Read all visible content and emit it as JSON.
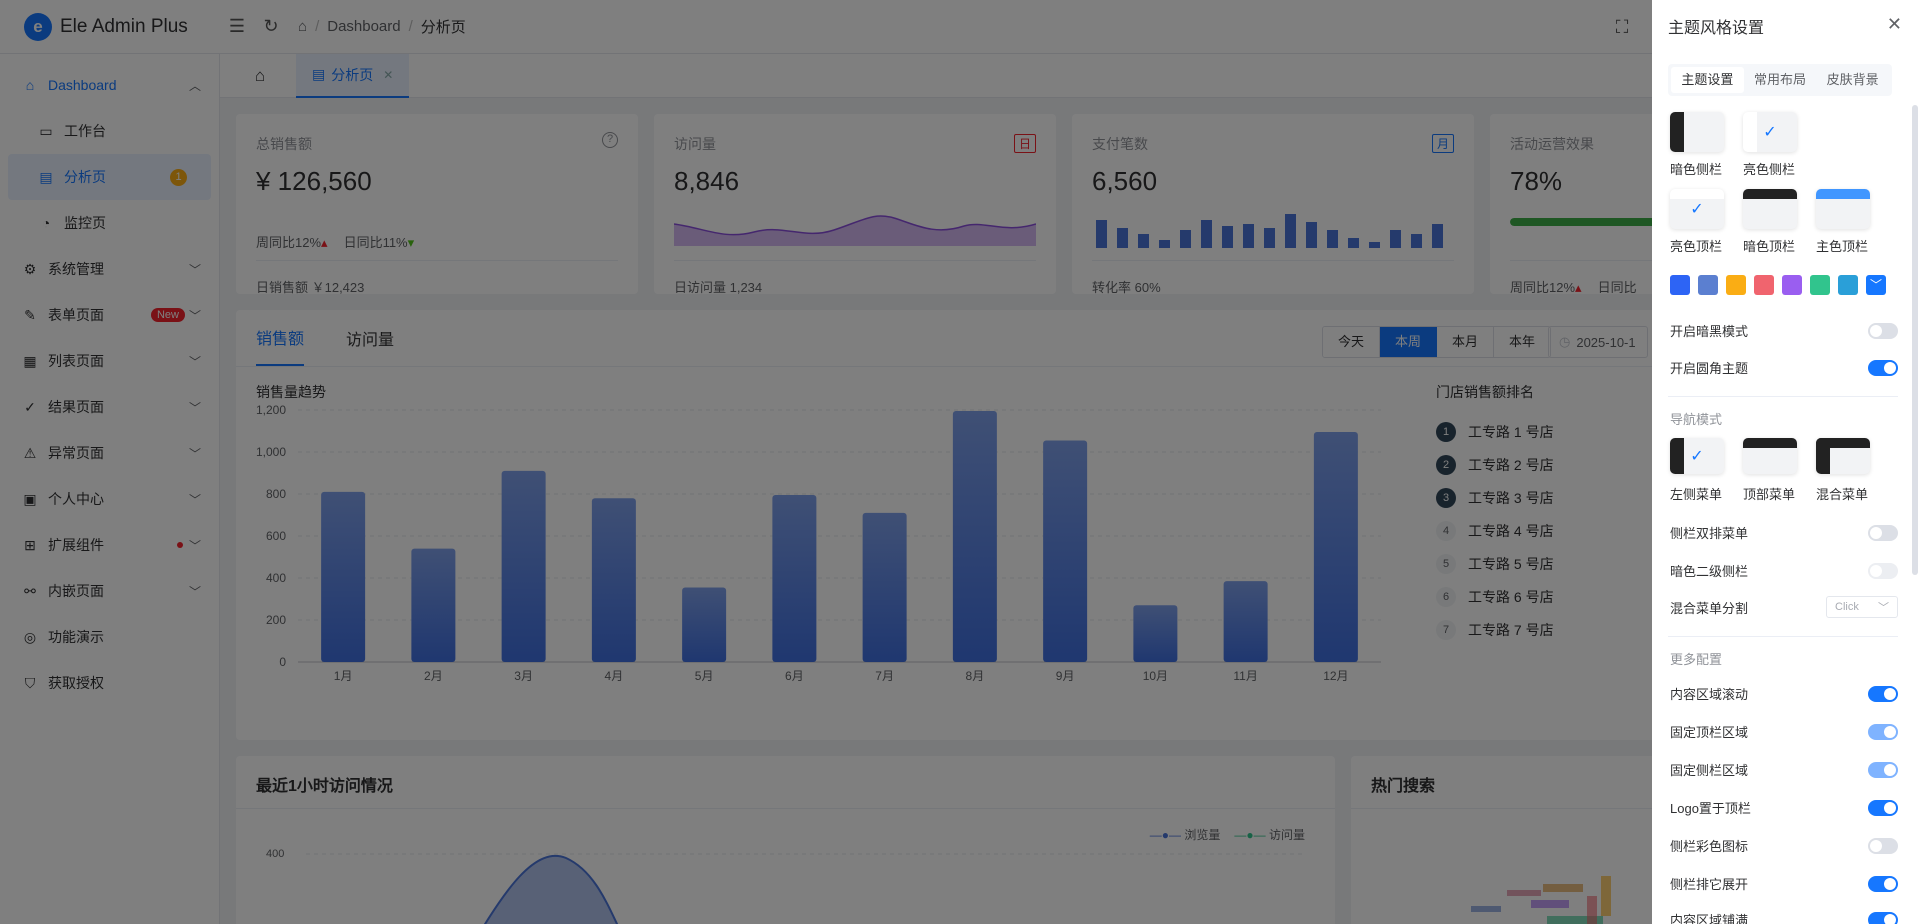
{
  "header": {
    "app_name": "Ele Admin Plus",
    "logo_letter": "e",
    "breadcrumb": [
      "Dashboard",
      "分析页"
    ]
  },
  "sidebar": {
    "items": [
      {
        "label": "Dashboard",
        "icon": "home-icon",
        "state": "active-parent",
        "arrow": "up"
      },
      {
        "label": "工作台",
        "icon": "monitor-icon",
        "sub": true
      },
      {
        "label": "分析页",
        "icon": "chart-icon",
        "sub": true,
        "active": true,
        "badge": "1"
      },
      {
        "label": "监控页",
        "icon": "gauge-icon",
        "sub": true
      },
      {
        "label": "系统管理",
        "icon": "gear-icon",
        "arrow": "down"
      },
      {
        "label": "表单页面",
        "icon": "edit-icon",
        "arrow": "down",
        "tag": "New"
      },
      {
        "label": "列表页面",
        "icon": "table-icon",
        "arrow": "down"
      },
      {
        "label": "结果页面",
        "icon": "check-circle-icon",
        "arrow": "down"
      },
      {
        "label": "异常页面",
        "icon": "warning-icon",
        "arrow": "down"
      },
      {
        "label": "个人中心",
        "icon": "profile-icon",
        "arrow": "down"
      },
      {
        "label": "扩展组件",
        "icon": "grid-icon",
        "arrow": "down",
        "dot": true
      },
      {
        "label": "内嵌页面",
        "icon": "link-icon",
        "arrow": "down"
      },
      {
        "label": "功能演示",
        "icon": "compass-icon"
      },
      {
        "label": "获取授权",
        "icon": "shield-icon"
      }
    ]
  },
  "tabbar": {
    "tab_label": "分析页"
  },
  "stats": [
    {
      "title": "总销售额",
      "value": "¥ 126,560",
      "sub1": "周同比12%",
      "sub2": "日同比11%",
      "foot": "日销售额 ￥12,423"
    },
    {
      "title": "访问量",
      "value": "8,846",
      "tag": "日",
      "tag_color": "#f5222d",
      "foot": "日访问量 1,234"
    },
    {
      "title": "支付笔数",
      "value": "6,560",
      "tag": "月",
      "tag_color": "#1677ff",
      "foot": "转化率 60%"
    },
    {
      "title": "活动运营效果",
      "value": "78%",
      "progress": 0.78,
      "sub1": "周同比12%",
      "sub2": "日同比"
    }
  ],
  "sales": {
    "tabs": [
      "销售额",
      "访问量"
    ],
    "periods": [
      "今天",
      "本周",
      "本月",
      "本年"
    ],
    "date_value": "2025-10-1",
    "chart_title": "销售量趋势",
    "rank_title": "门店销售额排名",
    "rank": [
      "工专路 1 号店",
      "工专路 2 号店",
      "工专路 3 号店",
      "工专路 4 号店",
      "工专路 5 号店",
      "工专路 6 号店",
      "工专路 7 号店"
    ]
  },
  "chart_data": {
    "type": "bar",
    "categories": [
      "1月",
      "2月",
      "3月",
      "4月",
      "5月",
      "6月",
      "7月",
      "8月",
      "9月",
      "10月",
      "11月",
      "12月"
    ],
    "values": [
      810,
      540,
      910,
      780,
      355,
      795,
      710,
      1195,
      1055,
      270,
      385,
      1095
    ],
    "ylim": [
      0,
      1200
    ],
    "yticks": [
      "0",
      "200",
      "400",
      "600",
      "800",
      "1,000",
      "1,200"
    ],
    "grid": true
  },
  "visits": {
    "title": "最近1小时访问情况",
    "legend": [
      "浏览量",
      "访问量"
    ],
    "ytick": "400"
  },
  "hot": {
    "title": "热门搜索"
  },
  "drawer": {
    "title": "主题风格设置",
    "tabs": [
      "主题设置",
      "常用布局",
      "皮肤背景"
    ],
    "sidebar_styles": [
      "暗色侧栏",
      "亮色侧栏"
    ],
    "header_styles": [
      "亮色顶栏",
      "暗色顶栏",
      "主色顶栏"
    ],
    "colors": [
      "#2d64f5",
      "#5b7fd0",
      "#faad14",
      "#f0646e",
      "#9a5ef0",
      "#31c48d",
      "#2a9fd8",
      "#1677ff"
    ],
    "toggles1": [
      {
        "label": "开启暗黑模式",
        "on": false
      },
      {
        "label": "开启圆角主题",
        "on": true
      }
    ],
    "nav_title": "导航模式",
    "nav_modes": [
      "左侧菜单",
      "顶部菜单",
      "混合菜单"
    ],
    "toggles2": [
      {
        "label": "侧栏双排菜单",
        "on": false
      },
      {
        "label": "暗色二级侧栏",
        "on": false
      }
    ],
    "mix_label": "混合菜单分割",
    "mix_value": "Click",
    "more_title": "更多配置",
    "toggles3": [
      {
        "label": "内容区域滚动",
        "on": true
      },
      {
        "label": "固定顶栏区域",
        "on": true
      },
      {
        "label": "固定侧栏区域",
        "on": true
      },
      {
        "label": "Logo置于顶栏",
        "on": true
      },
      {
        "label": "侧栏彩色图标",
        "on": false
      },
      {
        "label": "侧栏排它展开",
        "on": true
      },
      {
        "label": "内容区域铺满",
        "on": true
      }
    ]
  }
}
